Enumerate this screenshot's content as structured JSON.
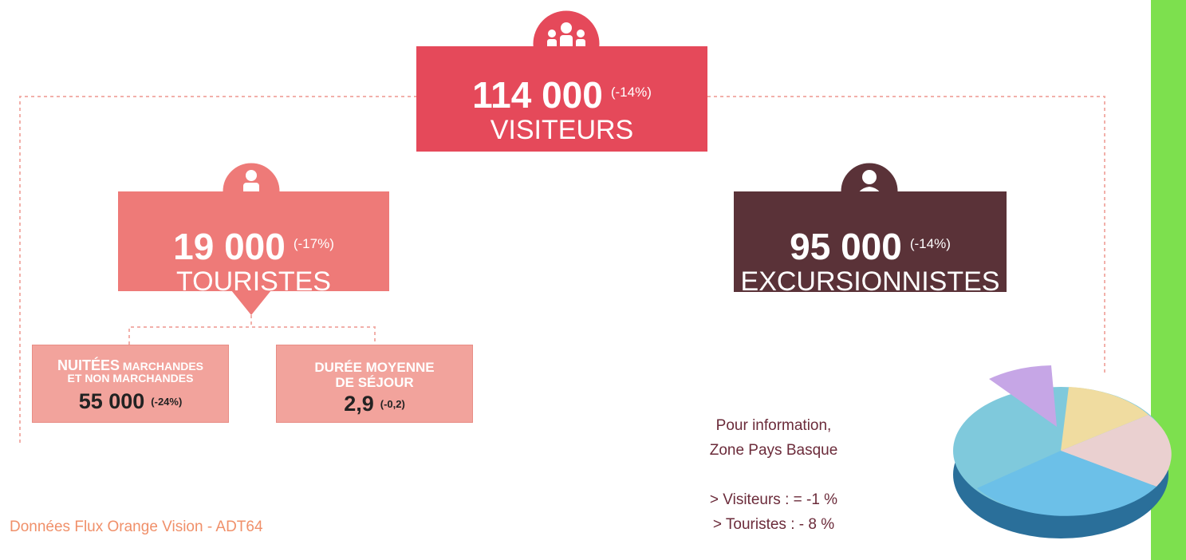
{
  "visitors": {
    "number": "114 000",
    "change": "(-14%)",
    "label": "VISITEURS"
  },
  "tourists": {
    "number": "19 000",
    "change": "(-17%)",
    "label": "TOURISTES"
  },
  "excursionists": {
    "number": "95 000",
    "change": "(-14%)",
    "label": "EXCURSIONNISTES"
  },
  "nights": {
    "title_main": "NUITÉES",
    "title_rest": "MARCHANDES",
    "title_line2": "ET NON MARCHANDES",
    "number": "55 000",
    "change": "(-24%)"
  },
  "stay": {
    "title_line1": "DURÉE MOYENNE",
    "title_line2": "DE SÉJOUR",
    "number": "2,9",
    "change": "(-0,2)"
  },
  "note": {
    "lines": [
      "Pour information,",
      "Zone Pays Basque",
      "> Visiteurs : = -1 %",
      "> Touristes : - 8 %"
    ]
  },
  "source": "Données Flux Orange Vision - ADT64"
}
